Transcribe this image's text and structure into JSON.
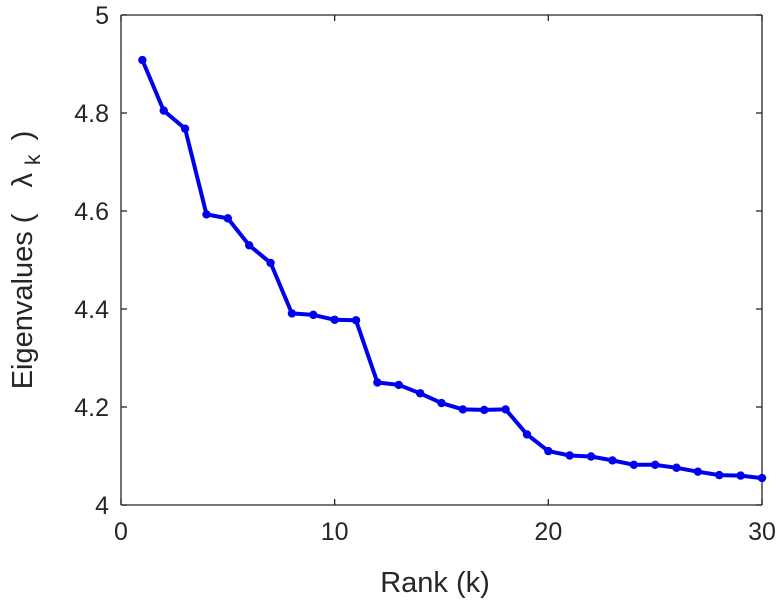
{
  "chart_data": {
    "type": "line",
    "xlabel": "Rank (k)",
    "ylabel": "Eigenvalues (",
    "ylabel_symbol": "λ",
    "ylabel_subscript": "k",
    "ylabel_close": ")",
    "xlim": [
      0,
      30
    ],
    "ylim": [
      4,
      5
    ],
    "xticks": [
      "0",
      "10",
      "20",
      "30"
    ],
    "yticks": [
      "4",
      "4.2",
      "4.4",
      "4.6",
      "4.8",
      "5"
    ],
    "grid": false,
    "series": [
      {
        "color": "#0000ee",
        "x": [
          1,
          2,
          3,
          4,
          5,
          6,
          7,
          8,
          9,
          10,
          11,
          12,
          13,
          14,
          15,
          16,
          17,
          18,
          19,
          20,
          21,
          22,
          23,
          24,
          25,
          26,
          27,
          28,
          29,
          30
        ],
        "y": [
          4.908,
          4.805,
          4.768,
          4.593,
          4.585,
          4.53,
          4.494,
          4.391,
          4.388,
          4.378,
          4.377,
          4.25,
          4.245,
          4.228,
          4.208,
          4.195,
          4.194,
          4.195,
          4.144,
          4.11,
          4.101,
          4.099,
          4.091,
          4.082,
          4.082,
          4.076,
          4.068,
          4.061,
          4.06,
          4.055
        ]
      }
    ]
  }
}
